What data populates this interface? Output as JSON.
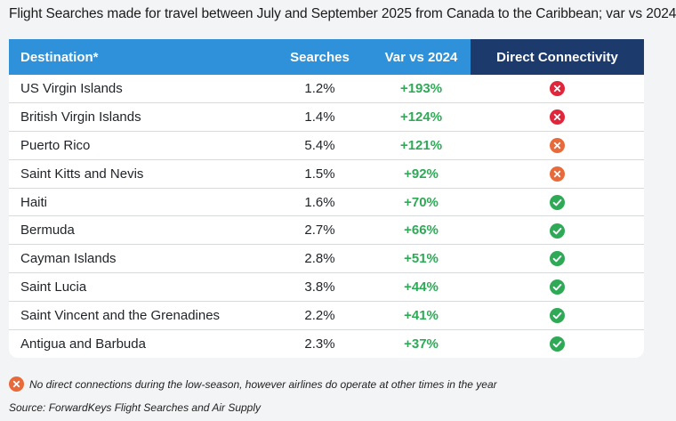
{
  "title": "Flight Searches made for travel between July and September 2025 from Canada to the Caribbean; var vs 2024",
  "colors": {
    "header_blue": "#2f91d9",
    "header_navy": "#1c3a6b",
    "positive_green": "#2eaa57",
    "status_red": "#e0263a",
    "status_orange": "#e86a3a",
    "status_green": "#2eaa57"
  },
  "chart_data": {
    "type": "table",
    "columns": [
      "Destination*",
      "Searches",
      "Var vs 2024",
      "Direct Connectivity"
    ],
    "rows": [
      {
        "destination": "US Virgin Islands",
        "searches": "1.2%",
        "var": "+193%",
        "connectivity": "none"
      },
      {
        "destination": "British Virgin Islands",
        "searches": "1.4%",
        "var": "+124%",
        "connectivity": "none"
      },
      {
        "destination": "Puerto Rico",
        "searches": "5.4%",
        "var": "+121%",
        "connectivity": "off-season"
      },
      {
        "destination": "Saint Kitts and Nevis",
        "searches": "1.5%",
        "var": "+92%",
        "connectivity": "off-season"
      },
      {
        "destination": "Haiti",
        "searches": "1.6%",
        "var": "+70%",
        "connectivity": "yes"
      },
      {
        "destination": "Bermuda",
        "searches": "2.7%",
        "var": "+66%",
        "connectivity": "yes"
      },
      {
        "destination": "Cayman Islands",
        "searches": "2.8%",
        "var": "+51%",
        "connectivity": "yes"
      },
      {
        "destination": "Saint Lucia",
        "searches": "3.8%",
        "var": "+44%",
        "connectivity": "yes"
      },
      {
        "destination": "Saint Vincent and the Grenadines",
        "searches": "2.2%",
        "var": "+41%",
        "connectivity": "yes"
      },
      {
        "destination": "Antigua and Barbuda",
        "searches": "2.3%",
        "var": "+37%",
        "connectivity": "yes"
      }
    ]
  },
  "note": "No direct connections during the low-season, however airlines do operate at other times in the year",
  "source": "Source: ForwardKeys Flight Searches and Air Supply"
}
